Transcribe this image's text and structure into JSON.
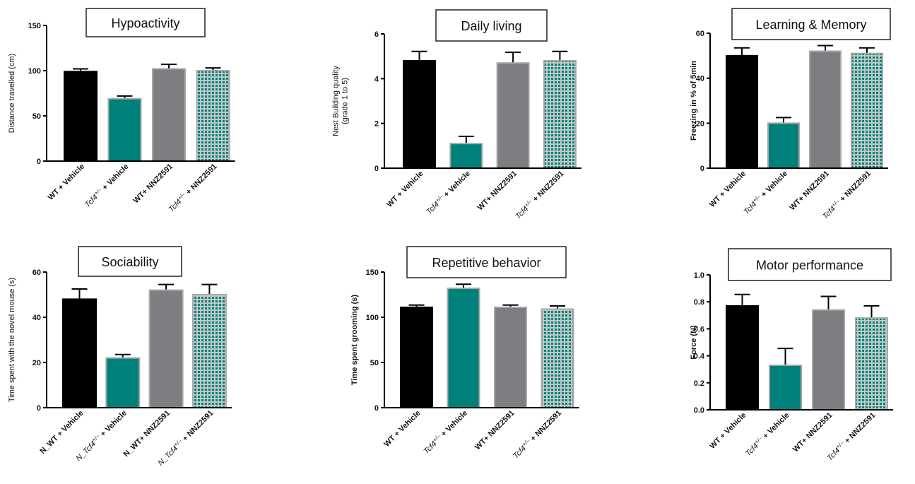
{
  "chart_data": [
    {
      "type": "bar",
      "title": "Hypoactivity",
      "ylabel": "Distance travelled (cm)",
      "ylabel_lines": [
        "Distance travelled (cm)"
      ],
      "ylabel_bold": false,
      "yticks": [
        "0",
        "50",
        "100",
        "150"
      ],
      "ylim": [
        0,
        150
      ],
      "categories": [
        [
          {
            "t": "WT + Vehicle"
          }
        ],
        [
          {
            "t": "Tcf4",
            "i": true
          },
          {
            "t": "+/–",
            "i": true,
            "sup": true
          },
          {
            "t": " + Vehicle"
          }
        ],
        [
          {
            "t": "WT+ NNZ2591"
          }
        ],
        [
          {
            "t": "Tcf4",
            "i": true
          },
          {
            "t": "+/–",
            "i": true,
            "sup": true
          },
          {
            "t": " + NNZ2591"
          }
        ]
      ],
      "values": [
        99,
        69,
        102,
        100
      ],
      "errors": [
        3,
        3,
        5,
        3
      ]
    },
    {
      "type": "bar",
      "title": "Daily living",
      "ylabel": "Nest Building quality (grade 1 to 5)",
      "ylabel_lines": [
        "Nest Building quality",
        "(grade 1 to 5)"
      ],
      "ylabel_bold": false,
      "yticks": [
        "0",
        "2",
        "4",
        "6"
      ],
      "ylim": [
        0,
        6
      ],
      "categories": [
        [
          {
            "t": "WT + Vehicle"
          }
        ],
        [
          {
            "t": "Tcf4",
            "i": true
          },
          {
            "t": "+/–",
            "i": true,
            "sup": true
          },
          {
            "t": " + Vehicle"
          }
        ],
        [
          {
            "t": "WT+ NNZ2591"
          }
        ],
        [
          {
            "t": "Tcf4",
            "i": true
          },
          {
            "t": "+/–",
            "i": true,
            "sup": true
          },
          {
            "t": " + NNZ2591"
          }
        ]
      ],
      "values": [
        4.8,
        1.1,
        4.7,
        4.8
      ],
      "errors": [
        0.42,
        0.32,
        0.48,
        0.42
      ]
    },
    {
      "type": "bar",
      "title": "Learning & Memory",
      "ylabel": "Freezing in % of 5min",
      "ylabel_lines": [
        "Freezing in % of 5min"
      ],
      "ylabel_bold": true,
      "yticks": [
        "0",
        "20",
        "40",
        "60"
      ],
      "ylim": [
        0,
        60
      ],
      "categories": [
        [
          {
            "t": "WT + Vehicle"
          }
        ],
        [
          {
            "t": "Tcf4",
            "i": true
          },
          {
            "t": "+/–",
            "i": true,
            "sup": true
          },
          {
            "t": " + Vehicle"
          }
        ],
        [
          {
            "t": "WT+ NNZ2591"
          }
        ],
        [
          {
            "t": "Tcf4",
            "i": true
          },
          {
            "t": "+/–",
            "i": true,
            "sup": true
          },
          {
            "t": " + NNZ2591"
          }
        ]
      ],
      "values": [
        50,
        20,
        52,
        51
      ],
      "errors": [
        3.5,
        2.5,
        2.5,
        2.5
      ]
    },
    {
      "type": "bar",
      "title": "Sociability",
      "ylabel": "Time spent with the novel mouse (s)",
      "ylabel_lines": [
        "Time spent with the novel mouse (s)"
      ],
      "ylabel_bold": false,
      "yticks": [
        "0",
        "20",
        "40",
        "60"
      ],
      "ylim": [
        0,
        60
      ],
      "categories": [
        [
          {
            "t": "N_WT + Vehicle"
          }
        ],
        [
          {
            "t": "N_Tcf4",
            "i": true
          },
          {
            "t": "+/–",
            "i": true,
            "sup": true
          },
          {
            "t": " + Vehicle"
          }
        ],
        [
          {
            "t": "N_WT+ NNZ2591"
          }
        ],
        [
          {
            "t": "N_Tcf4",
            "i": true
          },
          {
            "t": "+/–",
            "i": true,
            "sup": true
          },
          {
            "t": " + NNZ2591"
          }
        ]
      ],
      "values": [
        48,
        22,
        52,
        50
      ],
      "errors": [
        4.5,
        1.5,
        2.5,
        4.5
      ]
    },
    {
      "type": "bar",
      "title": "Repetitive behavior",
      "ylabel": "Time spent grooming (s)",
      "ylabel_lines": [
        "Time spent grooming (s)"
      ],
      "ylabel_bold": true,
      "yticks": [
        "0",
        "50",
        "100",
        "150"
      ],
      "ylim": [
        0,
        150
      ],
      "categories": [
        [
          {
            "t": "WT + Vehicle"
          }
        ],
        [
          {
            "t": "Tcf4",
            "i": true
          },
          {
            "t": "+/–",
            "i": true,
            "sup": true
          },
          {
            "t": " + Vehicle"
          }
        ],
        [
          {
            "t": "WT+ NNZ2591"
          }
        ],
        [
          {
            "t": "Tcf4",
            "i": true
          },
          {
            "t": "+/–",
            "i": true,
            "sup": true
          },
          {
            "t": " + NNZ2591"
          }
        ]
      ],
      "values": [
        111,
        132,
        111,
        109
      ],
      "errors": [
        2.5,
        4.5,
        2.5,
        3.5
      ]
    },
    {
      "type": "bar",
      "title": "Motor performance",
      "ylabel": "Force (N)",
      "ylabel_lines": [
        "Force (N)"
      ],
      "ylabel_bold": true,
      "yticks": [
        "0.0",
        "0.2",
        "0.4",
        "0.6",
        "0.8",
        "1.0"
      ],
      "ylim": [
        0,
        1
      ],
      "categories": [
        [
          {
            "t": "WT + Vehicle"
          }
        ],
        [
          {
            "t": "Tcf4",
            "i": true
          },
          {
            "t": "+/–",
            "i": true,
            "sup": true
          },
          {
            "t": " + Vehicle"
          }
        ],
        [
          {
            "t": "WT+ NNZ2591"
          }
        ],
        [
          {
            "t": "Tcf4",
            "i": true
          },
          {
            "t": "+/–",
            "i": true,
            "sup": true
          },
          {
            "t": " + NNZ2591"
          }
        ]
      ],
      "values": [
        0.77,
        0.33,
        0.74,
        0.68
      ],
      "errors": [
        0.085,
        0.125,
        0.1,
        0.09
      ]
    }
  ],
  "series_style": {
    "fills": [
      "#000000",
      "#00807a",
      "#7d7e82",
      "checker"
    ],
    "checker_colors": [
      "#00807a",
      "#bfc8c6"
    ],
    "outline": "#a8a8a8"
  }
}
